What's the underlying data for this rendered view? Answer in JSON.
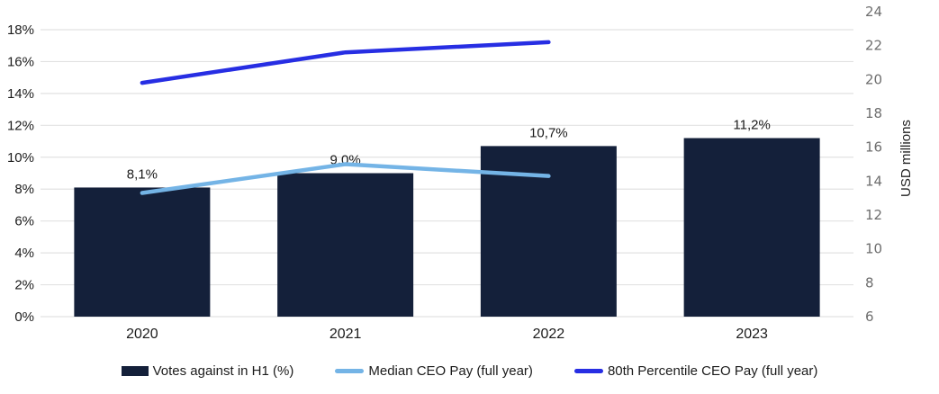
{
  "chart_data": {
    "type": "combo-bar-line",
    "categories": [
      "2020",
      "2021",
      "2022",
      "2023"
    ],
    "series": [
      {
        "name": "Votes against in H1 (%)",
        "type": "bar",
        "axis": "left",
        "values": [
          8.1,
          9.0,
          10.7,
          11.2
        ],
        "value_labels": [
          "8,1%",
          "9,0%",
          "10,7%",
          "11,2%"
        ],
        "color": "#14203A"
      },
      {
        "name": "Median CEO Pay (full year)",
        "type": "line",
        "axis": "right",
        "values": [
          13.3,
          15.0,
          14.3,
          null
        ],
        "color": "#74B4E6"
      },
      {
        "name": "80th Percentile CEO Pay (full year)",
        "type": "line",
        "axis": "right",
        "values": [
          19.8,
          21.6,
          22.2,
          null
        ],
        "color": "#272EE3"
      }
    ],
    "left_axis": {
      "min": 0,
      "max": 18,
      "ticks": [
        "0%",
        "2%",
        "4%",
        "6%",
        "8%",
        "10%",
        "12%",
        "14%",
        "16%",
        "18%"
      ]
    },
    "right_axis": {
      "min": 6,
      "max": 24,
      "ticks": [
        "6",
        "8",
        "10",
        "12",
        "14",
        "16",
        "18",
        "20",
        "22",
        "24"
      ],
      "title": "USD millions"
    },
    "grid": true,
    "legend_position": "bottom",
    "colors": {
      "grid": "#E2E2E2",
      "axis_text": "#1B1B1B",
      "right_axis_text": "#6E6E6E",
      "bar": "#14203A",
      "median_line": "#74B4E6",
      "p80_line": "#272EE3"
    }
  }
}
